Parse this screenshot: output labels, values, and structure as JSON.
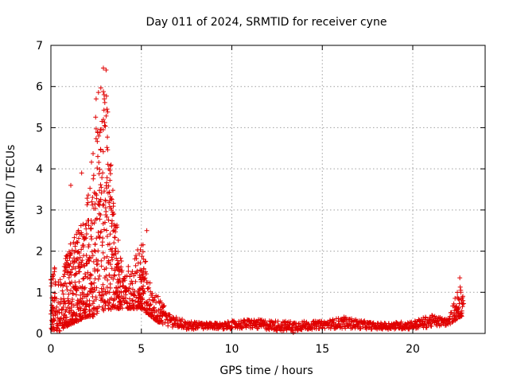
{
  "chart_data": {
    "type": "scatter",
    "title": "Day 011 of 2024, SRMTID for receiver cyne",
    "xlabel": "GPS time / hours",
    "ylabel": "SRMTID / TECUs",
    "xlim": [
      0,
      24
    ],
    "ylim": [
      0,
      7
    ],
    "xticks": [
      0,
      5,
      10,
      15,
      20
    ],
    "yticks": [
      0,
      1,
      2,
      3,
      4,
      5,
      6,
      7
    ],
    "xtick_labels": [
      "0",
      "5",
      "10",
      "15",
      "20"
    ],
    "ytick_labels": [
      "0",
      "1",
      "2",
      "3",
      "4",
      "5",
      "6",
      "7"
    ],
    "grid": true,
    "marker": "+",
    "colors": {
      "series": "#e00000"
    },
    "series": [
      {
        "name": "SRMTID",
        "profile_points": [
          {
            "x": 0.0,
            "low": 0.1,
            "high": 1.8
          },
          {
            "x": 0.5,
            "low": 0.05,
            "high": 1.3
          },
          {
            "x": 1.0,
            "low": 0.2,
            "high": 2.2
          },
          {
            "x": 1.5,
            "low": 0.3,
            "high": 2.5
          },
          {
            "x": 2.0,
            "low": 0.4,
            "high": 3.3
          },
          {
            "x": 2.5,
            "low": 0.4,
            "high": 5.7
          },
          {
            "x": 3.0,
            "low": 0.5,
            "high": 6.4
          },
          {
            "x": 3.5,
            "low": 0.6,
            "high": 3.0
          },
          {
            "x": 4.0,
            "low": 0.6,
            "high": 1.7
          },
          {
            "x": 4.5,
            "low": 0.6,
            "high": 1.6
          },
          {
            "x": 5.0,
            "low": 0.6,
            "high": 2.4
          },
          {
            "x": 5.5,
            "low": 0.4,
            "high": 1.2
          },
          {
            "x": 6.0,
            "low": 0.25,
            "high": 0.9
          },
          {
            "x": 6.5,
            "low": 0.15,
            "high": 0.5
          },
          {
            "x": 7.5,
            "low": 0.1,
            "high": 0.3
          },
          {
            "x": 9.0,
            "low": 0.1,
            "high": 0.25
          },
          {
            "x": 11.0,
            "low": 0.12,
            "high": 0.35
          },
          {
            "x": 13.0,
            "low": 0.05,
            "high": 0.3
          },
          {
            "x": 15.0,
            "low": 0.12,
            "high": 0.3
          },
          {
            "x": 16.2,
            "low": 0.12,
            "high": 0.4
          },
          {
            "x": 18.0,
            "low": 0.1,
            "high": 0.25
          },
          {
            "x": 20.0,
            "low": 0.1,
            "high": 0.3
          },
          {
            "x": 21.0,
            "low": 0.15,
            "high": 0.45
          },
          {
            "x": 22.0,
            "low": 0.2,
            "high": 0.35
          },
          {
            "x": 22.6,
            "low": 0.4,
            "high": 1.35
          },
          {
            "x": 22.8,
            "low": 0.4,
            "high": 0.8
          }
        ],
        "notable_points": [
          {
            "x": 2.9,
            "y": 6.45
          },
          {
            "x": 3.05,
            "y": 6.4
          },
          {
            "x": 2.95,
            "y": 5.7
          },
          {
            "x": 2.5,
            "y": 5.7
          },
          {
            "x": 3.1,
            "y": 5.45
          },
          {
            "x": 2.9,
            "y": 5.2
          },
          {
            "x": 3.2,
            "y": 4.0
          },
          {
            "x": 1.7,
            "y": 3.9
          },
          {
            "x": 1.1,
            "y": 3.6
          },
          {
            "x": 5.3,
            "y": 2.5
          },
          {
            "x": 16.2,
            "y": 0.4
          },
          {
            "x": 13.4,
            "y": 0.02
          },
          {
            "x": 22.6,
            "y": 1.35
          },
          {
            "x": 22.65,
            "y": 1.05
          }
        ]
      }
    ]
  }
}
